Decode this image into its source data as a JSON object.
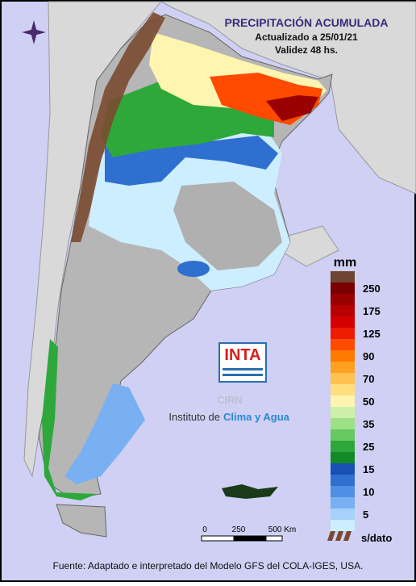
{
  "header": {
    "title": "PRECIPITACIÓN ACUMULADA",
    "updated": "Actualizado a 25/01/21",
    "validity": "Validez 48 hs."
  },
  "legend": {
    "unit": "mm",
    "labels": [
      250,
      175,
      125,
      90,
      70,
      50,
      35,
      25,
      15,
      10,
      5
    ],
    "colors": [
      "#6e4530",
      "#7a0000",
      "#9a0000",
      "#b80000",
      "#d40000",
      "#ee1c00",
      "#ff4a00",
      "#ff7a00",
      "#ffa020",
      "#ffc250",
      "#ffdf80",
      "#fff5b0",
      "#ccf0a8",
      "#9ee086",
      "#66c860",
      "#2ea83a",
      "#138a28",
      "#1a4fb4",
      "#2e6fd0",
      "#4f8fe4",
      "#78b0f2",
      "#a6d2fa",
      "#cdeeff"
    ],
    "no_data_label": "s/dato",
    "no_data_color": "#7a4a30"
  },
  "logo": {
    "name": "INTA",
    "center": "CIRN",
    "institute": "Instituto de",
    "institute_highlight": "Clima y Agua"
  },
  "scale_bar": {
    "labels": [
      "0",
      "250",
      "500 Km"
    ]
  },
  "footer": {
    "source": "Fuente: Adaptado e interpretado del Modelo GFS del COLA-IGES, USA."
  }
}
